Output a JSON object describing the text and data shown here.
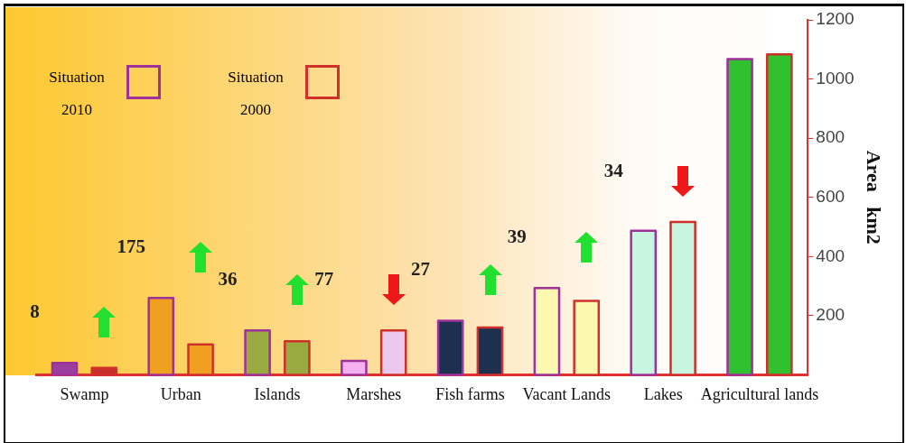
{
  "chart_data": {
    "type": "bar",
    "ylabel": "Area   km2",
    "categories": [
      "Swamp",
      "Urban",
      "Islands",
      "Marshes",
      "Fish farms",
      "Vacant Lands",
      "Lakes",
      "Agricultural lands"
    ],
    "series": [
      {
        "name": "Situation 2010",
        "color": "#a0309a",
        "colors": [
          "#9a3fa0",
          "#f0a020",
          "#98aa40",
          "#f4b0f0",
          "#1e3050",
          "#fdf8b0",
          "#c8f5e0",
          "#30c030"
        ],
        "values": [
          40,
          260,
          150,
          47,
          183,
          293,
          487,
          1067
        ]
      },
      {
        "name": "Situation 2000",
        "color": "#d0302a",
        "colors": [
          "#c8302a",
          "#f0a020",
          "#98aa40",
          "#ecc8ee",
          "#1e3050",
          "#fdf8b0",
          "#c8f5e0",
          "#30c030"
        ],
        "values": [
          23,
          103,
          113,
          150,
          160,
          250,
          517,
          1083
        ]
      }
    ],
    "annotations": [
      "8",
      "175",
      "36",
      "77",
      "27",
      "39",
      "34"
    ],
    "ylim": [
      0,
      1200
    ],
    "yticks": [
      200,
      400,
      600,
      800,
      1000,
      1200
    ],
    "grid": false,
    "legend": "top left"
  }
}
